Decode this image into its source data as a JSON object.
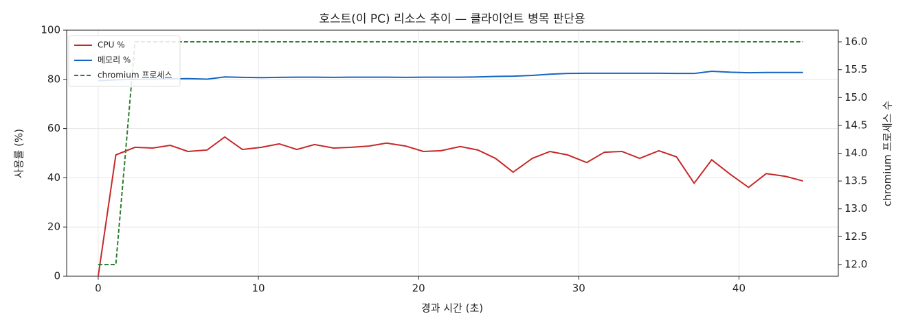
{
  "chart_data": {
    "type": "line",
    "title": "호스트(이 PC) 리소스 추이 — 클라이언트 병목 판단용",
    "xlabel": "경과 시간 (초)",
    "ylabel": "사용률 (%)",
    "y2label": "chromium 프로세스 수",
    "x": [
      0,
      1.1,
      2.3,
      3.4,
      4.5,
      5.6,
      6.8,
      7.9,
      9.0,
      10.2,
      11.3,
      12.4,
      13.5,
      14.7,
      15.8,
      16.9,
      18.0,
      19.2,
      20.3,
      21.4,
      22.6,
      23.7,
      24.8,
      25.9,
      27.1,
      28.2,
      29.3,
      30.5,
      31.6,
      32.7,
      33.8,
      35.0,
      36.1,
      37.2,
      38.3,
      39.5,
      40.6,
      41.7,
      42.9,
      44.0
    ],
    "series": [
      {
        "name": "CPU %",
        "color": "#c62828",
        "style": "solid",
        "values": [
          0,
          49.3,
          52.4,
          52.1,
          53.2,
          50.7,
          51.3,
          56.6,
          51.5,
          52.4,
          53.8,
          51.5,
          53.5,
          52.1,
          52.4,
          52.9,
          54.1,
          52.9,
          50.7,
          51.0,
          52.7,
          51.3,
          47.9,
          42.3,
          47.9,
          50.7,
          49.3,
          46.2,
          50.4,
          50.7,
          47.9,
          51.0,
          48.5,
          37.8,
          47.3,
          41.2,
          36.1,
          41.7,
          40.6,
          38.7
        ]
      },
      {
        "name": "메모리 %",
        "color": "#1565c0",
        "style": "solid",
        "values": [
          79.5,
          79.8,
          80.0,
          80.1,
          80.2,
          80.3,
          80.1,
          81.0,
          80.8,
          80.7,
          80.8,
          80.9,
          80.9,
          80.8,
          80.9,
          80.9,
          80.9,
          80.8,
          80.9,
          80.9,
          80.9,
          81.0,
          81.2,
          81.3,
          81.6,
          82.1,
          82.4,
          82.5,
          82.5,
          82.5,
          82.5,
          82.5,
          82.4,
          82.4,
          83.3,
          82.9,
          82.7,
          82.8,
          82.8,
          82.8
        ]
      },
      {
        "name": "chromium 프로세스",
        "color": "#2e7d32",
        "style": "dashed",
        "axis": "y2",
        "values": [
          12,
          12,
          16,
          16,
          16,
          16,
          16,
          16,
          16,
          16,
          16,
          16,
          16,
          16,
          16,
          16,
          16,
          16,
          16,
          16,
          16,
          16,
          16,
          16,
          16,
          16,
          16,
          16,
          16,
          16,
          16,
          16,
          16,
          16,
          16,
          16,
          16,
          16,
          16,
          16
        ]
      }
    ],
    "xlim": [
      -1.97,
      46.2
    ],
    "xticks": [
      0,
      10,
      20,
      30,
      40
    ],
    "ylim": [
      0,
      100
    ],
    "yticks": [
      0,
      20,
      40,
      60,
      80,
      100
    ],
    "y2lim": [
      11.79,
      16.21
    ],
    "y2ticks": [
      {
        "value": 12,
        "label": "12.0"
      },
      {
        "value": 12.5,
        "label": "12.5"
      },
      {
        "value": 13,
        "label": "13.0"
      },
      {
        "value": 13.5,
        "label": "13.5"
      },
      {
        "value": 14,
        "label": "14.0"
      },
      {
        "value": 14.5,
        "label": "14.5"
      },
      {
        "value": 15,
        "label": "15.0"
      },
      {
        "value": 15.5,
        "label": "15.5"
      },
      {
        "value": 16,
        "label": "16.0"
      }
    ],
    "grid": true,
    "legend": "upper-left"
  }
}
